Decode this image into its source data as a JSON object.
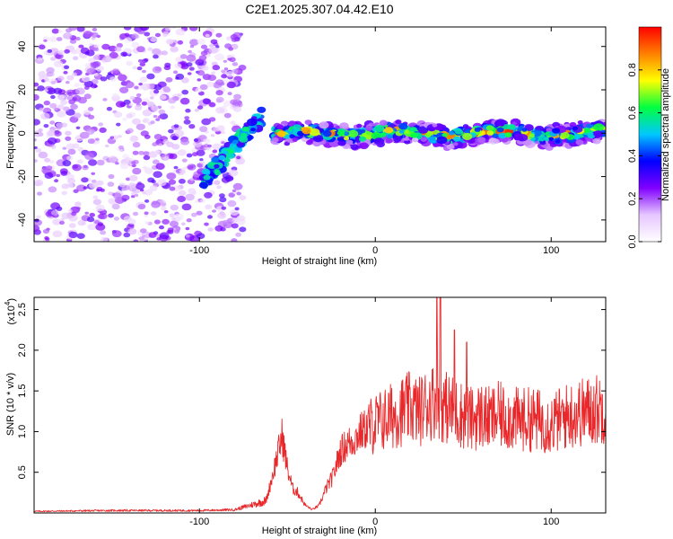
{
  "chart_data": [
    {
      "type": "heatmap",
      "title": "C2E1.2025.307.04.42.E10",
      "xlabel": "Height of straight line (km)",
      "ylabel": "Frequency (Hz)",
      "xlim": [
        -194,
        131
      ],
      "ylim": [
        -50,
        49
      ],
      "xticks": [
        -100,
        0,
        100
      ],
      "xtick_labels": [
        "-100",
        "0",
        "100"
      ],
      "yticks": [
        -40,
        -20,
        0,
        20,
        40
      ],
      "ytick_labels": [
        "-40",
        "-20",
        "0",
        "20",
        "40"
      ],
      "colorbar": {
        "label": "Normalized spectral amplitude",
        "range": [
          0,
          1
        ],
        "ticks": [
          0,
          0.2,
          0.4,
          0.6,
          0.8
        ],
        "tick_labels": [
          "0.0",
          "0.2",
          "0.4",
          "0.6",
          "0.8"
        ],
        "colormap": [
          "#ffffff",
          "#e6c6ff",
          "#8000ff",
          "#0000ff",
          "#00c8ff",
          "#00ff40",
          "#ffff00",
          "#ff8000",
          "#ff0000"
        ]
      },
      "regions": [
        {
          "name": "noise",
          "x": [
            -194,
            -75
          ],
          "f": [
            -50,
            49
          ],
          "amplitude": [
            0.05,
            0.3
          ]
        },
        {
          "name": "band-rise",
          "x": [
            -98,
            -64
          ],
          "f": [
            -22,
            8
          ],
          "amplitude": [
            0.3,
            0.6
          ]
        },
        {
          "name": "main-band",
          "x": [
            -58,
            131
          ],
          "f": [
            -4,
            3
          ],
          "amplitude": [
            0.4,
            1.0
          ]
        }
      ]
    },
    {
      "type": "line",
      "xlabel": "Height of straight line (km)",
      "ylabel": "SNR (10 * v/v)",
      "scale_label": "(x10",
      "scale_exp": "4",
      "xlim": [
        -194,
        131
      ],
      "ylim": [
        0,
        26500
      ],
      "xticks": [
        -100,
        0,
        100
      ],
      "xtick_labels": [
        "-100",
        "0",
        "100"
      ],
      "yticks": [
        5000,
        10000,
        15000,
        20000,
        25000
      ],
      "ytick_labels": [
        "0.5",
        "1.0",
        "1.5",
        "2.0",
        "2.5"
      ],
      "color": "#e8282a",
      "series": [
        {
          "name": "SNR",
          "x": [
            -194,
            -150,
            -100,
            -80,
            -62,
            -58,
            -53,
            -50,
            -47,
            -44,
            -40,
            -36,
            -32,
            -28,
            -24,
            -20,
            -16,
            -12,
            -8,
            -4,
            0,
            5,
            10,
            15,
            20,
            25,
            30,
            35,
            40,
            45,
            50,
            55,
            60,
            65,
            70,
            80,
            90,
            100,
            110,
            120,
            131
          ],
          "y": [
            200,
            300,
            300,
            400,
            1500,
            5000,
            9500,
            5500,
            3000,
            2500,
            1000,
            400,
            900,
            3000,
            4500,
            7500,
            8500,
            9000,
            10000,
            10500,
            11000,
            11500,
            12000,
            12500,
            13000,
            12500,
            13500,
            14000,
            13000,
            12500,
            12000,
            11500,
            12000,
            11500,
            12000,
            11500,
            11500,
            11000,
            12000,
            12500,
            13000
          ]
        }
      ],
      "peaks": [
        {
          "x": 35,
          "y": 26500
        },
        {
          "x": 37,
          "y": 26500
        },
        {
          "x": 45,
          "y": 22500
        },
        {
          "x": 52,
          "y": 21000
        }
      ]
    }
  ]
}
